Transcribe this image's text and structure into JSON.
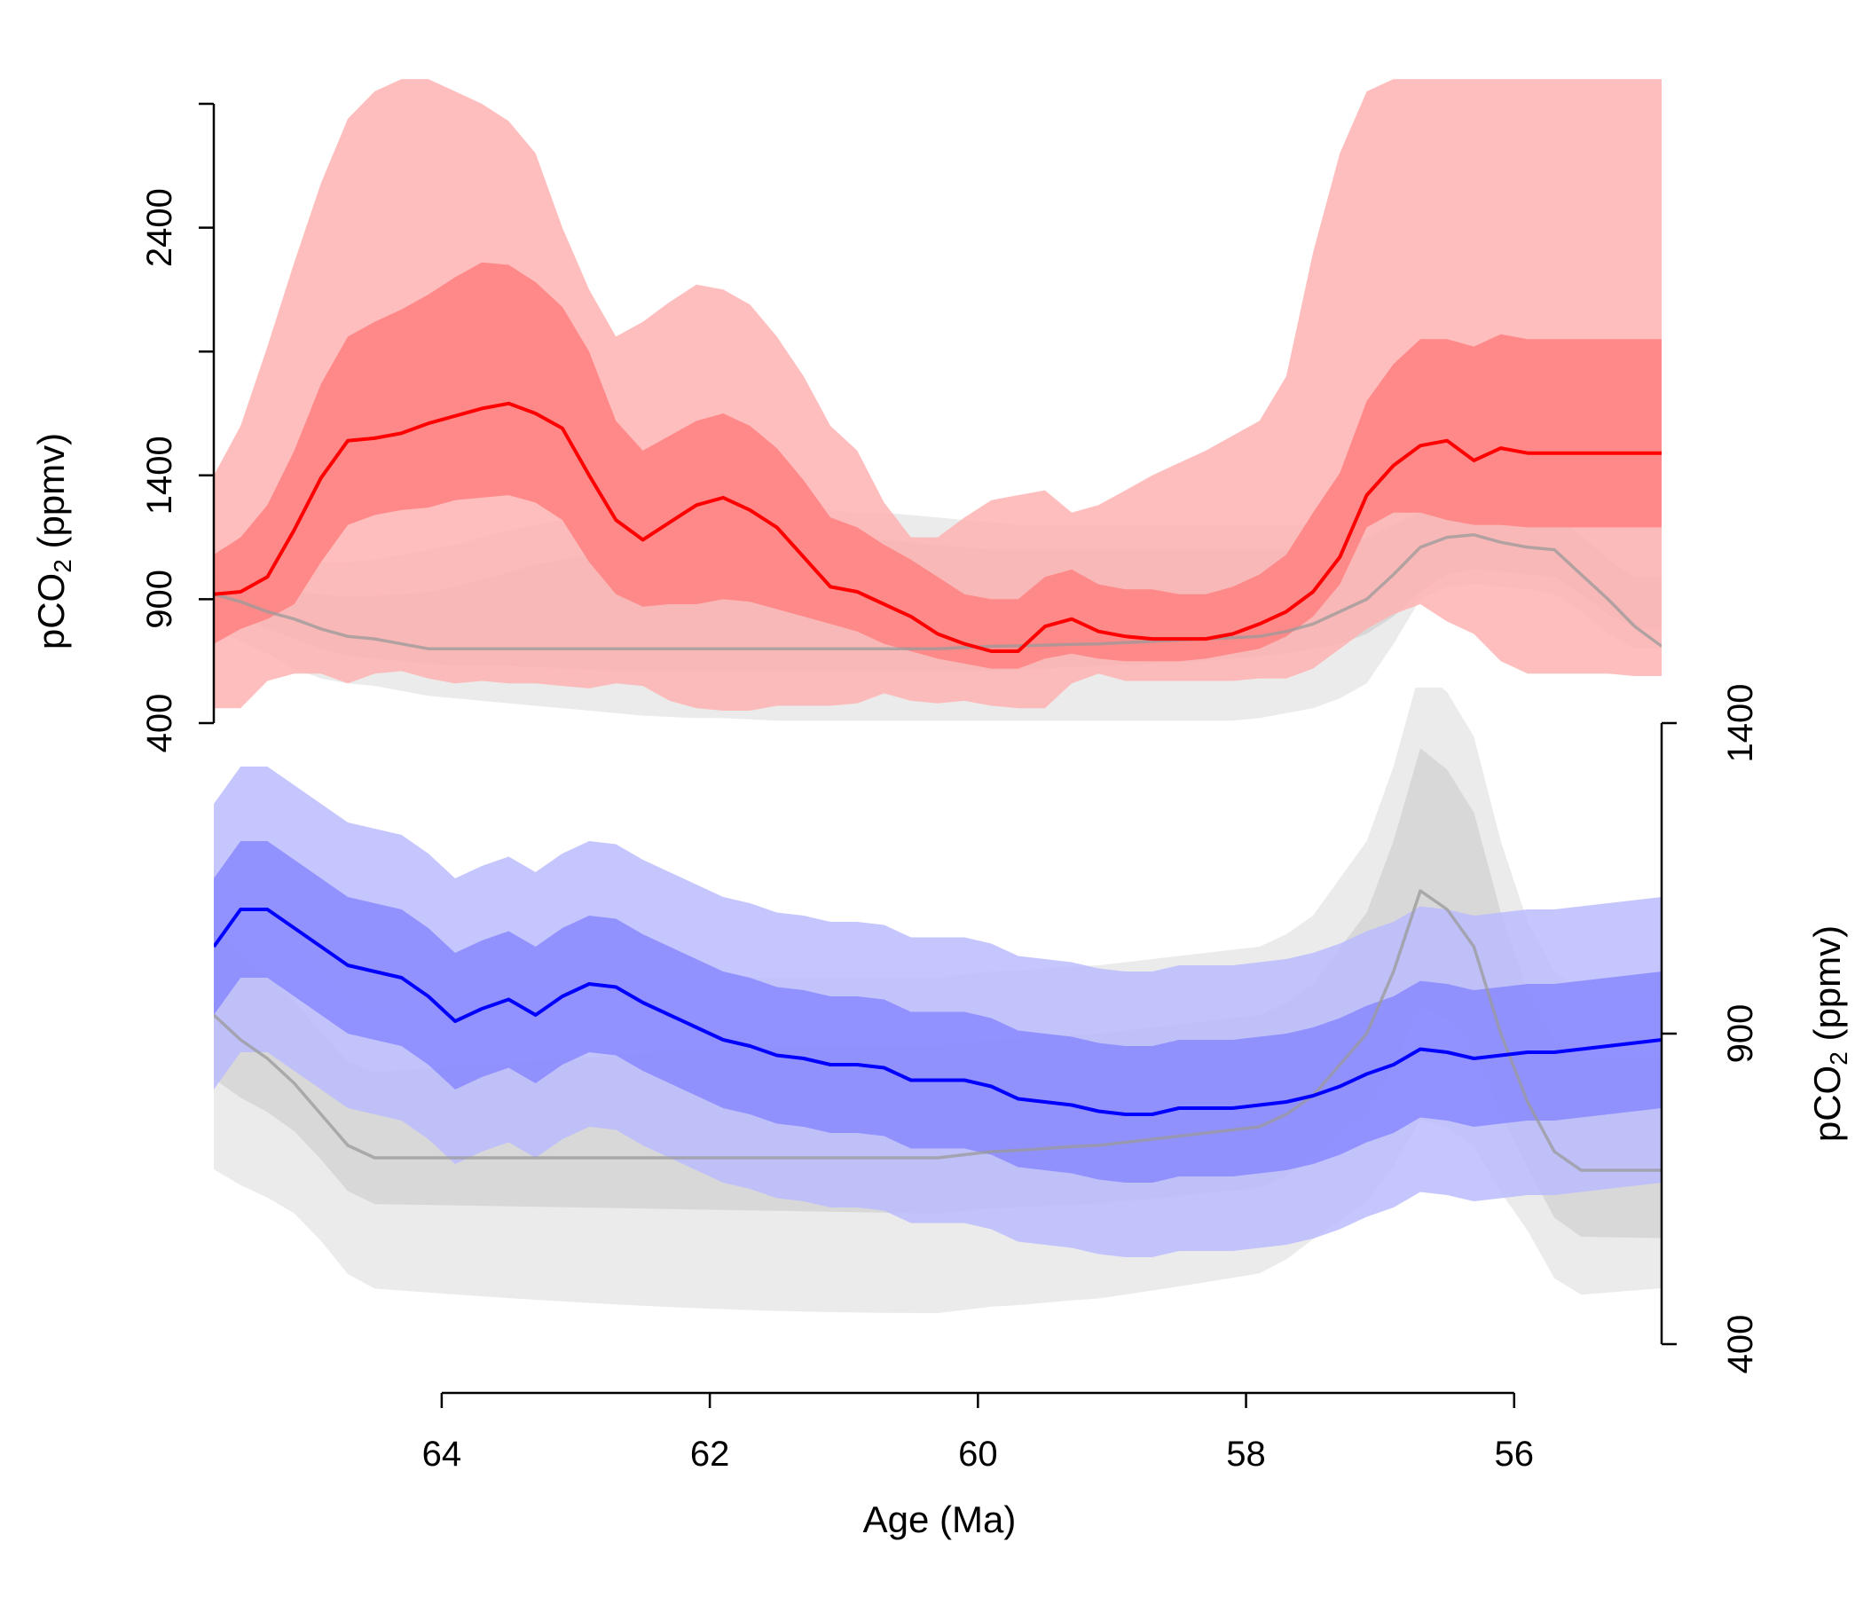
{
  "chart_data": [
    {
      "type": "area",
      "panel": "top",
      "ylabel": "pCO2 (ppmv)",
      "ylabel_parts": {
        "pre": "pCO",
        "sub": "2",
        "post": " (ppmv)"
      },
      "y_axis_side": "left",
      "y_ticks": [
        400,
        900,
        1400,
        2400
      ],
      "y_tick_labels": [
        "400",
        "900",
        "1400",
        "2400"
      ],
      "y_axis_marks": [
        400,
        900,
        1400,
        1900,
        2400,
        2900
      ],
      "ylim": [
        400,
        2900
      ],
      "xlim": [
        65.7,
        54.9
      ],
      "x": [
        65.7,
        65.5,
        65.3,
        65.1,
        64.9,
        64.7,
        64.5,
        64.3,
        64.1,
        63.9,
        63.7,
        63.5,
        63.3,
        63.1,
        62.9,
        62.7,
        62.5,
        62.3,
        62.1,
        61.9,
        61.7,
        61.5,
        61.3,
        61.1,
        60.9,
        60.7,
        60.5,
        60.3,
        60.1,
        59.9,
        59.7,
        59.5,
        59.3,
        59.1,
        58.9,
        58.7,
        58.5,
        58.3,
        58.1,
        57.9,
        57.7,
        57.5,
        57.3,
        57.1,
        56.9,
        56.7,
        56.5,
        56.3,
        56.1,
        55.9,
        55.7,
        55.5,
        55.3,
        55.1,
        54.9
      ],
      "series": [
        {
          "color": "#ff0000",
          "band_colors": [
            "#ffb3b3",
            "#ff8080"
          ],
          "median": [
            920,
            930,
            990,
            1180,
            1390,
            1540,
            1550,
            1570,
            1610,
            1640,
            1670,
            1690,
            1650,
            1590,
            1400,
            1220,
            1140,
            1210,
            1280,
            1310,
            1260,
            1190,
            1070,
            950,
            930,
            880,
            830,
            760,
            720,
            690,
            690,
            790,
            820,
            770,
            750,
            740,
            740,
            740,
            760,
            800,
            850,
            930,
            1070,
            1320,
            1440,
            1520,
            1540,
            1460,
            1510,
            1490,
            1490,
            1490,
            1490,
            1490,
            1490
          ],
          "band50_lo": [
            720,
            780,
            820,
            880,
            1050,
            1200,
            1240,
            1260,
            1270,
            1300,
            1310,
            1320,
            1290,
            1220,
            1050,
            920,
            870,
            880,
            880,
            900,
            890,
            860,
            830,
            800,
            770,
            720,
            690,
            660,
            640,
            620,
            620,
            660,
            680,
            660,
            650,
            650,
            650,
            660,
            680,
            700,
            750,
            830,
            960,
            1190,
            1250,
            1250,
            1220,
            1200,
            1200,
            1190,
            1190,
            1190,
            1190,
            1190,
            1190
          ],
          "band50_hi": [
            1080,
            1150,
            1280,
            1500,
            1770,
            1960,
            2020,
            2070,
            2130,
            2200,
            2260,
            2250,
            2180,
            2080,
            1900,
            1620,
            1500,
            1560,
            1620,
            1650,
            1600,
            1510,
            1380,
            1230,
            1190,
            1120,
            1060,
            990,
            920,
            900,
            900,
            990,
            1020,
            960,
            940,
            940,
            920,
            920,
            950,
            1000,
            1080,
            1250,
            1410,
            1700,
            1850,
            1950,
            1950,
            1920,
            1970,
            1950,
            1950,
            1950,
            1950,
            1950,
            1950
          ],
          "band90_lo": [
            460,
            460,
            570,
            600,
            600,
            560,
            600,
            610,
            580,
            560,
            570,
            560,
            560,
            550,
            540,
            560,
            550,
            490,
            460,
            450,
            450,
            470,
            470,
            470,
            480,
            520,
            490,
            480,
            490,
            470,
            460,
            460,
            560,
            600,
            570,
            570,
            570,
            570,
            570,
            580,
            580,
            620,
            700,
            780,
            840,
            880,
            810,
            760,
            650,
            600,
            600,
            600,
            600,
            590,
            590
          ],
          "band90_hi": [
            1400,
            1600,
            1920,
            2260,
            2580,
            2840,
            2950,
            3000,
            3000,
            2950,
            2900,
            2830,
            2700,
            2400,
            2150,
            1960,
            2020,
            2100,
            2170,
            2150,
            2090,
            1960,
            1800,
            1600,
            1500,
            1290,
            1150,
            1150,
            1230,
            1300,
            1320,
            1340,
            1250,
            1280,
            1340,
            1400,
            1450,
            1500,
            1560,
            1620,
            1800,
            2300,
            2700,
            2950,
            3000,
            3000,
            3000,
            3000,
            3000,
            3000,
            3000,
            3000,
            3000,
            3000,
            3000
          ]
        },
        {
          "color": "#999999",
          "band_colors": [
            "#e3e3e3",
            "#d0d0d0"
          ],
          "median": [
            920,
            890,
            850,
            820,
            780,
            750,
            740,
            720,
            700,
            700,
            700,
            700,
            700,
            700,
            700,
            700,
            700,
            700,
            700,
            700,
            700,
            700,
            700,
            700,
            700,
            700,
            700,
            700,
            705,
            710,
            712,
            715,
            718,
            720,
            725,
            730,
            735,
            740,
            745,
            750,
            770,
            800,
            850,
            900,
            1000,
            1110,
            1150,
            1160,
            1130,
            1110,
            1100,
            1000,
            900,
            790,
            710
          ],
          "band50_lo": [
            860,
            820,
            780,
            740,
            700,
            670,
            660,
            650,
            640,
            630,
            630,
            630,
            625,
            620,
            615,
            610,
            610,
            610,
            610,
            610,
            610,
            610,
            610,
            610,
            610,
            610,
            610,
            610,
            610,
            610,
            615,
            620,
            625,
            630,
            635,
            640,
            645,
            650,
            660,
            670,
            680,
            700,
            720,
            760,
            830,
            930,
            1000,
            1020,
            1010,
            1000,
            990,
            920,
            840,
            780,
            780
          ],
          "band50_hi": [
            1000,
            980,
            950,
            930,
            920,
            910,
            915,
            920,
            930,
            950,
            980,
            1010,
            1040,
            1060,
            1080,
            1090,
            1100,
            1110,
            1120,
            1130,
            1130,
            1140,
            1150,
            1150,
            1140,
            1140,
            1130,
            1120,
            1110,
            1100,
            1100,
            1100,
            1100,
            1100,
            1100,
            1100,
            1100,
            1100,
            1100,
            1100,
            1100,
            1100,
            1120,
            1150,
            1200,
            1250,
            1270,
            1280,
            1270,
            1260,
            1240,
            1160,
            1060,
            990,
            990
          ],
          "band90_lo": [
            780,
            730,
            680,
            620,
            580,
            560,
            550,
            530,
            510,
            500,
            490,
            480,
            470,
            460,
            450,
            440,
            430,
            425,
            420,
            420,
            415,
            410,
            410,
            410,
            410,
            410,
            410,
            410,
            410,
            410,
            410,
            410,
            410,
            410,
            410,
            410,
            410,
            410,
            410,
            420,
            440,
            460,
            500,
            560,
            720,
            900,
            950,
            960,
            950,
            940,
            920,
            850,
            760,
            700,
            700
          ],
          "band90_hi": [
            1110,
            1090,
            1070,
            1050,
            1050,
            1050,
            1060,
            1080,
            1100,
            1120,
            1150,
            1180,
            1200,
            1220,
            1230,
            1240,
            1250,
            1260,
            1260,
            1260,
            1260,
            1260,
            1260,
            1260,
            1250,
            1250,
            1240,
            1230,
            1220,
            1210,
            1200,
            1200,
            1200,
            1200,
            1200,
            1200,
            1200,
            1200,
            1200,
            1200,
            1200,
            1200,
            1220,
            1250,
            1300,
            1350,
            1380,
            1390,
            1380,
            1370,
            1350,
            1300,
            1250,
            1200,
            1200
          ]
        }
      ]
    },
    {
      "type": "area",
      "panel": "bottom",
      "ylabel": "pCO2 (ppmv)",
      "ylabel_parts": {
        "pre": "pCO",
        "sub": "2",
        "post": " (ppmv)"
      },
      "y_axis_side": "right",
      "y_ticks": [
        400,
        900,
        1400
      ],
      "y_tick_labels": [
        "400",
        "900",
        "1400"
      ],
      "ylim": [
        400,
        1400
      ],
      "xlim": [
        65.7,
        54.9
      ],
      "x": [
        65.7,
        65.5,
        65.3,
        65.1,
        64.9,
        64.7,
        64.5,
        64.3,
        64.1,
        63.9,
        63.7,
        63.5,
        63.3,
        63.1,
        62.9,
        62.7,
        62.5,
        62.3,
        62.1,
        61.9,
        61.7,
        61.5,
        61.3,
        61.1,
        60.9,
        60.7,
        60.5,
        60.3,
        60.1,
        59.9,
        59.7,
        59.5,
        59.3,
        59.1,
        58.9,
        58.7,
        58.5,
        58.3,
        58.1,
        57.9,
        57.7,
        57.5,
        57.3,
        57.1,
        56.9,
        56.7,
        56.5,
        56.3,
        56.1,
        55.9,
        55.7,
        55.5,
        55.3,
        55.1,
        54.9
      ],
      "x_ticks": [
        64,
        62,
        60,
        58,
        56
      ],
      "x_tick_labels": [
        "64",
        "62",
        "60",
        "58",
        "56"
      ],
      "xlabel": "Age (Ma)",
      "series": [
        {
          "color": "#0000ff",
          "band_colors": [
            "#bcbcff",
            "#8888ff"
          ],
          "median": [
            1040,
            1100,
            1100,
            1070,
            1040,
            1010,
            1000,
            990,
            960,
            920,
            940,
            955,
            930,
            960,
            980,
            975,
            950,
            930,
            910,
            890,
            880,
            865,
            860,
            850,
            850,
            845,
            825,
            825,
            825,
            815,
            795,
            790,
            785,
            775,
            770,
            770,
            780,
            780,
            780,
            785,
            790,
            800,
            815,
            835,
            850,
            875,
            870,
            860,
            865,
            870,
            870,
            875,
            880,
            885,
            890
          ]
        },
        {
          "color": "#999999",
          "band_colors": [
            "#e3e3e3",
            "#d0d0d0"
          ],
          "median": [
            930,
            890,
            860,
            820,
            770,
            720,
            700,
            700,
            700,
            700,
            700,
            700,
            700,
            700,
            700,
            700,
            700,
            700,
            700,
            700,
            700,
            700,
            700,
            700,
            700,
            700,
            700,
            700,
            705,
            710,
            712,
            715,
            718,
            720,
            725,
            730,
            735,
            740,
            745,
            750,
            770,
            800,
            850,
            900,
            1000,
            1130,
            1100,
            1040,
            900,
            790,
            710,
            680,
            680,
            680,
            680
          ]
        }
      ]
    }
  ]
}
